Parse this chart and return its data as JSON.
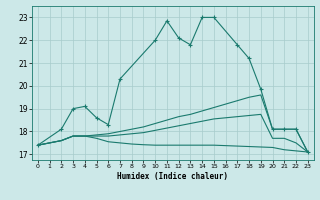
{
  "xlabel": "Humidex (Indice chaleur)",
  "background_color": "#cce8e8",
  "line_color": "#1a7a6e",
  "xlim": [
    -0.5,
    23.5
  ],
  "ylim": [
    16.75,
    23.5
  ],
  "xticks": [
    0,
    1,
    2,
    3,
    4,
    5,
    6,
    7,
    8,
    9,
    10,
    11,
    12,
    13,
    14,
    15,
    16,
    17,
    18,
    19,
    20,
    21,
    22,
    23
  ],
  "yticks": [
    17,
    18,
    19,
    20,
    21,
    22,
    23
  ],
  "line1_x": [
    0,
    2,
    3,
    4,
    5,
    6,
    7,
    10,
    11,
    12,
    13,
    14,
    15,
    17,
    18,
    19,
    20,
    21,
    22,
    23
  ],
  "line1_y": [
    17.4,
    18.1,
    19.0,
    19.1,
    18.6,
    18.3,
    20.3,
    22.0,
    22.85,
    22.1,
    21.8,
    23.0,
    23.0,
    21.8,
    21.2,
    19.85,
    18.1,
    18.1,
    18.1,
    17.1
  ],
  "line2_x": [
    0,
    2,
    3,
    4,
    5,
    6,
    7,
    8,
    9,
    10,
    11,
    12,
    13,
    14,
    15,
    16,
    17,
    18,
    19,
    20,
    21,
    22,
    23
  ],
  "line2_y": [
    17.4,
    17.6,
    17.8,
    17.8,
    17.85,
    17.9,
    18.0,
    18.1,
    18.2,
    18.35,
    18.5,
    18.65,
    18.75,
    18.9,
    19.05,
    19.2,
    19.35,
    19.5,
    19.6,
    18.1,
    18.1,
    18.1,
    17.1
  ],
  "line3_x": [
    0,
    2,
    3,
    4,
    5,
    6,
    7,
    8,
    9,
    10,
    11,
    12,
    13,
    14,
    15,
    16,
    17,
    18,
    19,
    20,
    21,
    22,
    23
  ],
  "line3_y": [
    17.4,
    17.6,
    17.8,
    17.8,
    17.8,
    17.8,
    17.85,
    17.9,
    17.95,
    18.05,
    18.15,
    18.25,
    18.35,
    18.45,
    18.55,
    18.6,
    18.65,
    18.7,
    18.75,
    17.7,
    17.7,
    17.5,
    17.1
  ],
  "line4_x": [
    0,
    2,
    3,
    4,
    5,
    6,
    7,
    8,
    9,
    10,
    11,
    12,
    13,
    14,
    15,
    16,
    17,
    18,
    19,
    20,
    21,
    22,
    23
  ],
  "line4_y": [
    17.4,
    17.6,
    17.8,
    17.8,
    17.7,
    17.55,
    17.5,
    17.45,
    17.42,
    17.4,
    17.4,
    17.4,
    17.4,
    17.4,
    17.4,
    17.38,
    17.36,
    17.34,
    17.32,
    17.3,
    17.2,
    17.15,
    17.1
  ]
}
